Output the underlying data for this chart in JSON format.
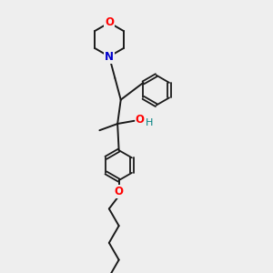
{
  "bg_color": "#eeeeee",
  "bond_color": "#1a1a1a",
  "O_color": "#ff0000",
  "N_color": "#0000cc",
  "OH_color": "#008080",
  "figsize": [
    3.0,
    3.0
  ],
  "dpi": 100,
  "xlim": [
    0,
    10
  ],
  "ylim": [
    0,
    10
  ]
}
